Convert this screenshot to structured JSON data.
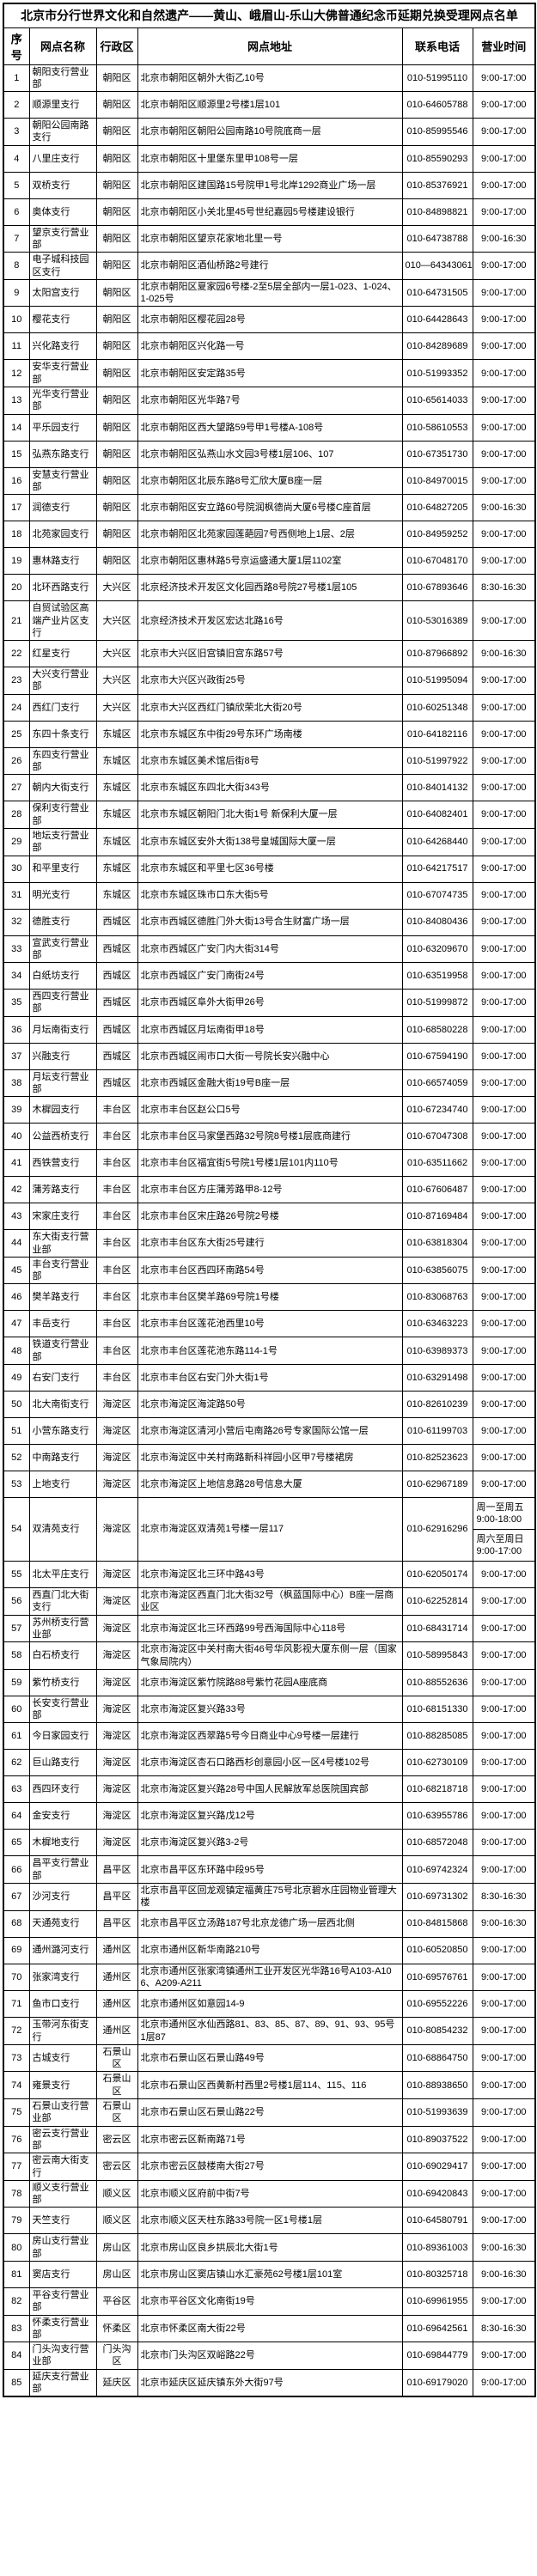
{
  "title": "北京市分行世界文化和自然遗产——黄山、峨眉山-乐山大佛普通纪念币延期兑换受理网点名单",
  "columns": [
    "序号",
    "网点名称",
    "行政区",
    "网点地址",
    "联系电话",
    "营业时间"
  ],
  "colors": {
    "border": "#000000",
    "background": "#ffffff",
    "text": "#000000"
  },
  "rows": [
    {
      "no": "1",
      "name": "朝阳支行营业部",
      "district": "朝阳区",
      "address": "北京市朝阳区朝外大街乙10号",
      "phone": "010-51995110",
      "hours": "9:00-17:00"
    },
    {
      "no": "2",
      "name": "顺源里支行",
      "district": "朝阳区",
      "address": "北京市朝阳区顺源里2号楼1层101",
      "phone": "010-64605788",
      "hours": "9:00-17:00"
    },
    {
      "no": "3",
      "name": "朝阳公园南路支行",
      "district": "朝阳区",
      "address": "北京市朝阳区朝阳公园南路10号院底商一层",
      "phone": "010-85995546",
      "hours": "9:00-17:00"
    },
    {
      "no": "4",
      "name": "八里庄支行",
      "district": "朝阳区",
      "address": "北京市朝阳区十里堡东里甲108号一层",
      "phone": "010-85590293",
      "hours": "9:00-17:00"
    },
    {
      "no": "5",
      "name": "双桥支行",
      "district": "朝阳区",
      "address": "北京市朝阳区建国路15号院甲1号北岸1292商业广场一层",
      "phone": "010-85376921",
      "hours": "9:00-17:00"
    },
    {
      "no": "6",
      "name": "奥体支行",
      "district": "朝阳区",
      "address": "北京市朝阳区小关北里45号世纪嘉园5号楼建设银行",
      "phone": "010-84898821",
      "hours": "9:00-17:00"
    },
    {
      "no": "7",
      "name": "望京支行营业部",
      "district": "朝阳区",
      "address": "北京市朝阳区望京花家地北里一号",
      "phone": "010-64738788",
      "hours": "9:00-16:30"
    },
    {
      "no": "8",
      "name": "电子城科技园区支行",
      "district": "朝阳区",
      "address": "北京市朝阳区酒仙桥路2号建行",
      "phone": "010—64343061",
      "hours": "9:00-17:00"
    },
    {
      "no": "9",
      "name": "太阳宫支行",
      "district": "朝阳区",
      "address": "北京市朝阳区夏家园6号楼-2至5层全部内一层1-023、1-024、1-025号",
      "phone": "010-64731505",
      "hours": "9:00-17:00"
    },
    {
      "no": "10",
      "name": "樱花支行",
      "district": "朝阳区",
      "address": "北京市朝阳区樱花园28号",
      "phone": "010-64428643",
      "hours": "9:00-17:00"
    },
    {
      "no": "11",
      "name": "兴化路支行",
      "district": "朝阳区",
      "address": "北京市朝阳区兴化路一号",
      "phone": "010-84289689",
      "hours": "9:00-17:00"
    },
    {
      "no": "12",
      "name": "安华支行营业部",
      "district": "朝阳区",
      "address": "北京市朝阳区安定路35号",
      "phone": "010-51993352",
      "hours": "9:00-17:00"
    },
    {
      "no": "13",
      "name": "光华支行营业部",
      "district": "朝阳区",
      "address": "北京市朝阳区光华路7号",
      "phone": "010-65614033",
      "hours": "9:00-17:00"
    },
    {
      "no": "14",
      "name": "平乐园支行",
      "district": "朝阳区",
      "address": "北京市朝阳区西大望路59号甲1号楼A-108号",
      "phone": "010-58610553",
      "hours": "9:00-17:00"
    },
    {
      "no": "15",
      "name": "弘燕东路支行",
      "district": "朝阳区",
      "address": "北京市朝阳区弘燕山水文园3号楼1层106、107",
      "phone": "010-67351730",
      "hours": "9:00-17:00"
    },
    {
      "no": "16",
      "name": "安慧支行营业部",
      "district": "朝阳区",
      "address": "北京市朝阳区北辰东路8号汇欣大厦B座一层",
      "phone": "010-84970015",
      "hours": "9:00-17:00"
    },
    {
      "no": "17",
      "name": "润德支行",
      "district": "朝阳区",
      "address": "北京市朝阳区安立路60号院润枫德尚大厦6号楼C座首层",
      "phone": "010-64827205",
      "hours": "9:00-16:30"
    },
    {
      "no": "18",
      "name": "北苑家园支行",
      "district": "朝阳区",
      "address": "北京市朝阳区北苑家园莲葩园7号西侧地上1层、2层",
      "phone": "010-84959252",
      "hours": "9:00-17:00"
    },
    {
      "no": "19",
      "name": "惠林路支行",
      "district": "朝阳区",
      "address": "北京市朝阳区惠林路5号京运盛通大厦1层1102室",
      "phone": "010-67048170",
      "hours": "9:00-17:00"
    },
    {
      "no": "20",
      "name": "北环西路支行",
      "district": "大兴区",
      "address": "北京经济技术开发区文化园西路8号院27号楼1层105",
      "phone": "010-67893646",
      "hours": "8:30-16:30"
    },
    {
      "no": "21",
      "name": "自贸试验区高端产业片区支行",
      "district": "大兴区",
      "address": "北京经济技术开发区宏达北路16号",
      "phone": "010-53016389",
      "hours": "9:00-17:00"
    },
    {
      "no": "22",
      "name": "红星支行",
      "district": "大兴区",
      "address": "北京市大兴区旧宫镇旧宫东路57号",
      "phone": "010-87966892",
      "hours": "9:00-16:30"
    },
    {
      "no": "23",
      "name": "大兴支行营业部",
      "district": "大兴区",
      "address": "北京市大兴区兴政街25号",
      "phone": "010-51995094",
      "hours": "9:00-17:00"
    },
    {
      "no": "24",
      "name": "西红门支行",
      "district": "大兴区",
      "address": "北京市大兴区西红门镇欣荣北大街20号",
      "phone": "010-60251348",
      "hours": "9:00-17:00"
    },
    {
      "no": "25",
      "name": "东四十条支行",
      "district": "东城区",
      "address": "北京市东城区东中街29号东环广场南楼",
      "phone": "010-64182116",
      "hours": "9:00-17:00"
    },
    {
      "no": "26",
      "name": "东四支行营业部",
      "district": "东城区",
      "address": "北京市东城区美术馆后街8号",
      "phone": "010-51997922",
      "hours": "9:00-17:00"
    },
    {
      "no": "27",
      "name": "朝内大街支行",
      "district": "东城区",
      "address": "北京市东城区东四北大街343号",
      "phone": "010-84014132",
      "hours": "9:00-17:00"
    },
    {
      "no": "28",
      "name": "保利支行营业部",
      "district": "东城区",
      "address": "北京市东城区朝阳门北大街1号 新保利大厦一层",
      "phone": "010-64082401",
      "hours": "9:00-17:00"
    },
    {
      "no": "29",
      "name": "地坛支行营业部",
      "district": "东城区",
      "address": "北京市东城区安外大街138号皇城国际大厦一层",
      "phone": "010-64268440",
      "hours": "9:00-17:00"
    },
    {
      "no": "30",
      "name": "和平里支行",
      "district": "东城区",
      "address": "北京市东城区和平里七区36号楼",
      "phone": "010-64217517",
      "hours": "9:00-17:00"
    },
    {
      "no": "31",
      "name": "明光支行",
      "district": "东城区",
      "address": "北京市东城区珠市口东大街5号",
      "phone": "010-67074735",
      "hours": "9:00-17:00"
    },
    {
      "no": "32",
      "name": "德胜支行",
      "district": "西城区",
      "address": "北京市西城区德胜门外大街13号合生财富广场一层",
      "phone": "010-84080436",
      "hours": "9:00-17:00"
    },
    {
      "no": "33",
      "name": "宣武支行营业部",
      "district": "西城区",
      "address": "北京市西城区广安门内大街314号",
      "phone": "010-63209670",
      "hours": "9:00-17:00"
    },
    {
      "no": "34",
      "name": "白纸坊支行",
      "district": "西城区",
      "address": "北京市西城区广安门南街24号",
      "phone": "010-63519958",
      "hours": "9:00-17:00"
    },
    {
      "no": "35",
      "name": "西四支行营业部",
      "district": "西城区",
      "address": "北京市西城区阜外大街甲26号",
      "phone": "010-51999872",
      "hours": "9:00-17:00"
    },
    {
      "no": "36",
      "name": "月坛南街支行",
      "district": "西城区",
      "address": "北京市西城区月坛南街甲18号",
      "phone": "010-68580228",
      "hours": "9:00-17:00"
    },
    {
      "no": "37",
      "name": "兴融支行",
      "district": "西城区",
      "address": "北京市西城区闹市口大街一号院长安兴融中心",
      "phone": "010-67594190",
      "hours": "9:00-17:00"
    },
    {
      "no": "38",
      "name": "月坛支行营业部",
      "district": "西城区",
      "address": "北京市西城区金融大街19号B座一层",
      "phone": "010-66574059",
      "hours": "9:00-17:00"
    },
    {
      "no": "39",
      "name": "木樨园支行",
      "district": "丰台区",
      "address": "北京市丰台区赵公口5号",
      "phone": "010-67234740",
      "hours": "9:00-17:00"
    },
    {
      "no": "40",
      "name": "公益西桥支行",
      "district": "丰台区",
      "address": "北京市丰台区马家堡西路32号院8号楼1层底商建行",
      "phone": "010-67047308",
      "hours": "9:00-17:00"
    },
    {
      "no": "41",
      "name": "西铁营支行",
      "district": "丰台区",
      "address": "北京市丰台区福宜街5号院1号楼1层101内110号",
      "phone": "010-63511662",
      "hours": "9:00-17:00"
    },
    {
      "no": "42",
      "name": "蒲芳路支行",
      "district": "丰台区",
      "address": "北京市丰台区方庄蒲芳路甲8-12号",
      "phone": "010-67606487",
      "hours": "9:00-17:00"
    },
    {
      "no": "43",
      "name": "宋家庄支行",
      "district": "丰台区",
      "address": "北京市丰台区宋庄路26号院2号楼",
      "phone": "010-87169484",
      "hours": "9:00-17:00"
    },
    {
      "no": "44",
      "name": "东大街支行营业部",
      "district": "丰台区",
      "address": "北京市丰台区东大街25号建行",
      "phone": "010-63818304",
      "hours": "9:00-17:00"
    },
    {
      "no": "45",
      "name": "丰台支行营业部",
      "district": "丰台区",
      "address": "北京市丰台区西四环南路54号",
      "phone": "010-63856075",
      "hours": "9:00-17:00"
    },
    {
      "no": "46",
      "name": "樊羊路支行",
      "district": "丰台区",
      "address": "北京市丰台区樊羊路69号院1号楼",
      "phone": "010-83068763",
      "hours": "9:00-17:00"
    },
    {
      "no": "47",
      "name": "丰岳支行",
      "district": "丰台区",
      "address": "北京市丰台区莲花池西里10号",
      "phone": "010-63463223",
      "hours": "9:00-17:00"
    },
    {
      "no": "48",
      "name": "铁道支行营业部",
      "district": "丰台区",
      "address": "北京市丰台区莲花池东路114-1号",
      "phone": "010-63989373",
      "hours": "9:00-17:00"
    },
    {
      "no": "49",
      "name": "右安门支行",
      "district": "丰台区",
      "address": "北京市丰台区右安门外大街1号",
      "phone": "010-63291498",
      "hours": "9:00-17:00"
    },
    {
      "no": "50",
      "name": "北大南街支行",
      "district": "海淀区",
      "address": "北京市海淀区海淀路50号",
      "phone": "010-82610239",
      "hours": "9:00-17:00"
    },
    {
      "no": "51",
      "name": "小营东路支行",
      "district": "海淀区",
      "address": "北京市海淀区清河小营后屯南路26号专家国际公馆一层",
      "phone": "010-61199703",
      "hours": "9:00-17:00"
    },
    {
      "no": "52",
      "name": "中南路支行",
      "district": "海淀区",
      "address": "北京市海淀区中关村南路新科祥园小区甲7号楼裙房",
      "phone": "010-82523623",
      "hours": "9:00-17:00"
    },
    {
      "no": "53",
      "name": "上地支行",
      "district": "海淀区",
      "address": "北京市海淀区上地信息路28号信息大厦",
      "phone": "010-62967189",
      "hours": "9:00-17:00"
    },
    {
      "no": "54",
      "name": "双清苑支行",
      "district": "海淀区",
      "address": "北京市海淀区双清苑1号楼一层117",
      "phone": "010-62916296",
      "hours": {
        "split": [
          {
            "label": "周一至周五",
            "time": "9:00-18:00"
          },
          {
            "label": "周六至周日",
            "time": "9:00-17:00"
          }
        ]
      }
    },
    {
      "no": "55",
      "name": "北太平庄支行",
      "district": "海淀区",
      "address": "北京市海淀区北三环中路43号",
      "phone": "010-62050174",
      "hours": "9:00-17:00"
    },
    {
      "no": "56",
      "name": "西直门北大街支行",
      "district": "海淀区",
      "address": "北京市海淀区西直门北大街32号（枫蓝国际中心）B座一层商业区",
      "phone": "010-62252814",
      "hours": "9:00-17:00"
    },
    {
      "no": "57",
      "name": "苏州桥支行营业部",
      "district": "海淀区",
      "address": "北京市海淀区北三环西路99号西海国际中心118号",
      "phone": "010-68431714",
      "hours": "9:00-17:00"
    },
    {
      "no": "58",
      "name": "白石桥支行",
      "district": "海淀区",
      "address": "北京市海淀区中关村南大街46号华风影视大厦东侧一层（国家气象局院内）",
      "phone": "010-58995843",
      "hours": "9:00-17:00"
    },
    {
      "no": "59",
      "name": "紫竹桥支行",
      "district": "海淀区",
      "address": "北京市海淀区紫竹院路88号紫竹花园A座底商",
      "phone": "010-88552636",
      "hours": "9:00-17:00"
    },
    {
      "no": "60",
      "name": "长安支行营业部",
      "district": "海淀区",
      "address": "北京市海淀区复兴路33号",
      "phone": "010-68151330",
      "hours": "9:00-17:00"
    },
    {
      "no": "61",
      "name": "今日家园支行",
      "district": "海淀区",
      "address": "北京市海淀区西翠路5号今日商业中心9号楼一层建行",
      "phone": "010-88285085",
      "hours": "9:00-17:00"
    },
    {
      "no": "62",
      "name": "巨山路支行",
      "district": "海淀区",
      "address": "北京市海淀区杏石口路西杉创意园小区一区4号楼102号",
      "phone": "010-62730109",
      "hours": "9:00-17:00"
    },
    {
      "no": "63",
      "name": "西四环支行",
      "district": "海淀区",
      "address": "北京市海淀区复兴路28号中国人民解放军总医院国宾部",
      "phone": "010-68218718",
      "hours": "9:00-17:00"
    },
    {
      "no": "64",
      "name": "金安支行",
      "district": "海淀区",
      "address": "北京市海淀区复兴路戊12号",
      "phone": "010-63955786",
      "hours": "9:00-17:00"
    },
    {
      "no": "65",
      "name": "木樨地支行",
      "district": "海淀区",
      "address": "北京市海淀区复兴路3-2号",
      "phone": "010-68572048",
      "hours": "9:00-17:00"
    },
    {
      "no": "66",
      "name": "昌平支行营业部",
      "district": "昌平区",
      "address": "北京市昌平区东环路中段95号",
      "phone": "010-69742324",
      "hours": "9:00-17:00"
    },
    {
      "no": "67",
      "name": "沙河支行",
      "district": "昌平区",
      "address": "北京市昌平区回龙观镇定福黄庄75号北京碧水庄园物业管理大楼",
      "phone": "010-69731302",
      "hours": "8:30-16:30"
    },
    {
      "no": "68",
      "name": "天通苑支行",
      "district": "昌平区",
      "address": "北京市昌平区立汤路187号北京龙德广场一层西北侧",
      "phone": "010-84815868",
      "hours": "9:00-16:30"
    },
    {
      "no": "69",
      "name": "通州潞河支行",
      "district": "通州区",
      "address": "北京市通州区新华南路210号",
      "phone": "010-60520850",
      "hours": "9:00-17:00"
    },
    {
      "no": "70",
      "name": "张家湾支行",
      "district": "通州区",
      "address": "北京市通州区张家湾镇通州工业开发区光华路16号A103-A106、A209-A211",
      "phone": "010-69576761",
      "hours": "9:00-17:00"
    },
    {
      "no": "71",
      "name": "鱼市口支行",
      "district": "通州区",
      "address": "北京市通州区如意园14-9",
      "phone": "010-69552226",
      "hours": "9:00-17:00"
    },
    {
      "no": "72",
      "name": "玉带河东街支行",
      "district": "通州区",
      "address": "北京市通州区水仙西路81、83、85、87、89、91、93、95号1层87",
      "phone": "010-80854232",
      "hours": "9:00-17:00"
    },
    {
      "no": "73",
      "name": "古城支行",
      "district": "石景山区",
      "address": "北京市石景山区石景山路49号",
      "phone": "010-68864750",
      "hours": "9:00-17:00"
    },
    {
      "no": "74",
      "name": "雍景支行",
      "district": "石景山区",
      "address": "北京市石景山区西黄新村西里2号楼1层114、115、116",
      "phone": "010-88938650",
      "hours": "9:00-17:00"
    },
    {
      "no": "75",
      "name": "石景山支行营业部",
      "district": "石景山区",
      "address": "北京市石景山区石景山路22号",
      "phone": "010-51993639",
      "hours": "9:00-17:00"
    },
    {
      "no": "76",
      "name": "密云支行营业部",
      "district": "密云区",
      "address": "北京市密云区新南路71号",
      "phone": "010-89037522",
      "hours": "9:00-17:00"
    },
    {
      "no": "77",
      "name": "密云南大街支行",
      "district": "密云区",
      "address": "北京市密云区鼓楼南大街27号",
      "phone": "010-69029417",
      "hours": "9:00-17:00"
    },
    {
      "no": "78",
      "name": "顺义支行营业部",
      "district": "顺义区",
      "address": "北京市顺义区府前中街7号",
      "phone": "010-69420843",
      "hours": "9:00-17:00"
    },
    {
      "no": "79",
      "name": "天竺支行",
      "district": "顺义区",
      "address": "北京市顺义区天柱东路33号院一区1号楼1层",
      "phone": "010-64580791",
      "hours": "9:00-17:00"
    },
    {
      "no": "80",
      "name": "房山支行营业部",
      "district": "房山区",
      "address": "北京市房山区良乡拱辰北大街1号",
      "phone": "010-89361003",
      "hours": "9:00-16:30"
    },
    {
      "no": "81",
      "name": "窦店支行",
      "district": "房山区",
      "address": "北京市房山区窦店镇山水汇豪苑62号楼1层101室",
      "phone": "010-80325718",
      "hours": "9:00-16:30"
    },
    {
      "no": "82",
      "name": "平谷支行营业部",
      "district": "平谷区",
      "address": "北京市平谷区文化南街19号",
      "phone": "010-69961955",
      "hours": "9:00-17:00"
    },
    {
      "no": "83",
      "name": "怀柔支行营业部",
      "district": "怀柔区",
      "address": "北京市怀柔区南大街22号",
      "phone": "010-69642561",
      "hours": "8:30-16:30"
    },
    {
      "no": "84",
      "name": "门头沟支行营业部",
      "district": "门头沟区",
      "address": "北京市门头沟区双峪路22号",
      "phone": "010-69844779",
      "hours": "9:00-17:00"
    },
    {
      "no": "85",
      "name": "延庆支行营业部",
      "district": "延庆区",
      "address": "北京市延庆区延庆镇东外大街97号",
      "phone": "010-69179020",
      "hours": "9:00-17:00"
    }
  ]
}
